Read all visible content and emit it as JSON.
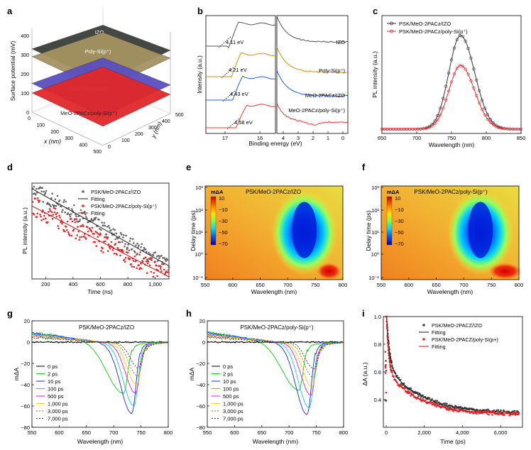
{
  "panels": {
    "a": "a",
    "b": "b",
    "c": "c",
    "d": "d",
    "e": "e",
    "f": "f",
    "g": "g",
    "h": "h",
    "i": "i"
  },
  "colors": {
    "black": "#333333",
    "red": "#e8262b",
    "gray": "#555555",
    "orange": "#d4900e",
    "blue": "#1f5fd6",
    "pinkred": "#e53935"
  },
  "chart_data": [
    {
      "id": "a",
      "type": "surface3d",
      "zlabel": "Surface potential (mV)",
      "xlabel": "x (nm)",
      "ylabel": "y (nm)",
      "zticks": [
        "0",
        "100",
        "200",
        "300",
        "400"
      ],
      "xticks": [
        "0",
        "100",
        "200",
        "300",
        "400",
        "500"
      ],
      "yticks": [
        "0",
        "100",
        "200",
        "300",
        "400",
        "500"
      ],
      "layers": [
        {
          "name": "IZO",
          "level_mV": 330,
          "color": "#3a3f3a"
        },
        {
          "name": "Poly-Si(p⁺)",
          "level_mV": 290,
          "color": "#a49260"
        },
        {
          "name": "MeO-2PACz/IZO",
          "level_mV": 150,
          "color": "#5a4fbf"
        },
        {
          "name": "MeO-2PACz/poly-Si(p⁺)",
          "level_mV": 100,
          "color": "#e0282a"
        }
      ]
    },
    {
      "id": "b",
      "type": "line",
      "xlabel": "Binding energy (eV)",
      "ylabel": "Intensity (a.u.)",
      "xticks_left": [
        "17",
        "16"
      ],
      "xticks_right": [
        "4",
        "3",
        "2",
        "1",
        "0"
      ],
      "series": [
        {
          "name": "IZO",
          "cutoff_eV": "4.11 eV",
          "color": "#555555"
        },
        {
          "name": "Poly-Si(p⁺)",
          "cutoff_eV": "4.21 eV",
          "color": "#d4900e"
        },
        {
          "name": "MeO-2PACz/IZO",
          "cutoff_eV": "4.43 eV",
          "color": "#1f5fd6"
        },
        {
          "name": "MeO-2PACz/poly-Si(p⁺)",
          "cutoff_eV": "4.58 eV",
          "color": "#e53935"
        }
      ]
    },
    {
      "id": "c",
      "type": "line",
      "xlabel": "Wavelength (nm)",
      "ylabel": "PL intensity (a.u.)",
      "xlim": [
        650,
        850
      ],
      "xticks": [
        "650",
        "700",
        "750",
        "800",
        "850"
      ],
      "series": [
        {
          "name": "PSK/MeO-2PACz/IZO",
          "peak_nm": 763,
          "peak": 1.0,
          "width_nm": 30,
          "color": "#333333"
        },
        {
          "name": "PSK/MeO-2PACz/poly-Si(p⁺)",
          "peak_nm": 763,
          "peak": 0.68,
          "width_nm": 30,
          "color": "#e8262b"
        }
      ]
    },
    {
      "id": "d",
      "type": "scatter",
      "xlabel": "Time (ns)",
      "ylabel": "PL intensity (a.u.)",
      "xlim": [
        100,
        1100
      ],
      "xticks": [
        "200",
        "400",
        "600",
        "800",
        "1,000"
      ],
      "legend": [
        "PSK/MeO-2PACz/IZO",
        "Fitting",
        "PSK/MeO-2PACz/poly-Si(p⁺)",
        "Fitting"
      ],
      "series": [
        {
          "name": "PSK/MeO-2PACz/IZO",
          "color": "#666666",
          "fit": [
            [
              100,
              0.97
            ],
            [
              1100,
              0.12
            ]
          ]
        },
        {
          "name": "PSK/MeO-2PACz/poly-Si(p⁺)",
          "color": "#e8262b",
          "fit": [
            [
              100,
              0.78
            ],
            [
              1100,
              0.0
            ]
          ]
        }
      ]
    },
    {
      "id": "e",
      "type": "heatmap",
      "title": "PSK/MeO-2PACz/IZO",
      "xlabel": "Wavelength (nm)",
      "ylabel": "Delay time (ps)",
      "xlim": [
        550,
        800
      ],
      "xticks": [
        "550",
        "600",
        "650",
        "700",
        "750",
        "800"
      ],
      "yticks": [
        "10⁻¹",
        "10⁰",
        "10¹",
        "10²",
        "10³"
      ],
      "colorbar": {
        "label": "mΔA",
        "ticks": [
          "10",
          "−10",
          "−30",
          "−50",
          "−70"
        ]
      }
    },
    {
      "id": "f",
      "type": "heatmap",
      "title": "PSK/MeO-2PACz/poly-Si(p⁺)",
      "xlabel": "Wavelength (nm)",
      "ylabel": "Delay time (ps)",
      "xlim": [
        550,
        800
      ],
      "xticks": [
        "550",
        "600",
        "650",
        "700",
        "750",
        "800"
      ],
      "yticks": [
        "10⁻¹",
        "10⁰",
        "10¹",
        "10²",
        "10³"
      ],
      "colorbar": {
        "label": "mΔA",
        "ticks": [
          "10",
          "−10",
          "−30",
          "−50",
          "−70"
        ]
      }
    },
    {
      "id": "g",
      "type": "line",
      "title": "PSK/MeO-2PACz/IZO",
      "xlabel": "Wavelength (nm)",
      "ylabel": "mΔA",
      "xlim": [
        550,
        800
      ],
      "ylim": [
        -80,
        20
      ],
      "xticks": [
        "550",
        "600",
        "650",
        "700",
        "750",
        "800"
      ],
      "yticks": [
        "20",
        "0",
        "−20",
        "−40",
        "−60",
        "−80"
      ],
      "series": [
        {
          "name": "0 ps",
          "color": "#000000",
          "dash": "",
          "min": -1,
          "center": 740
        },
        {
          "name": "2 ps",
          "color": "#14c814",
          "dash": "",
          "min": -48,
          "center": 718
        },
        {
          "name": "10 ps",
          "color": "#1b2bd8",
          "dash": "",
          "min": -67,
          "center": 733
        },
        {
          "name": "100 ps",
          "color": "#19c8e6",
          "dash": "",
          "min": -60,
          "center": 737
        },
        {
          "name": "500 ps",
          "color": "#e619e0",
          "dash": "",
          "min": -48,
          "center": 740
        },
        {
          "name": "1,000 ps",
          "color": "#e6d419",
          "dash": "",
          "min": -40,
          "center": 742
        },
        {
          "name": "3,000 ps",
          "color": "#7a7a1a",
          "dash": "2,2",
          "min": -32,
          "center": 744
        },
        {
          "name": "7,000 ps",
          "color": "#303030",
          "dash": "2,2",
          "min": -24,
          "center": 745
        }
      ]
    },
    {
      "id": "h",
      "type": "line",
      "title": "PSK/MeO-2PACz/poly-Si(p⁺)",
      "xlabel": "Wavelength (nm)",
      "ylabel": "mΔA",
      "xlim": [
        550,
        800
      ],
      "ylim": [
        -80,
        20
      ],
      "xticks": [
        "550",
        "600",
        "650",
        "700",
        "750",
        "800"
      ],
      "yticks": [
        "20",
        "0",
        "−20",
        "−40",
        "−60",
        "−80"
      ],
      "series": [
        {
          "name": "0 ps",
          "color": "#000000",
          "dash": "",
          "min": -1,
          "center": 740
        },
        {
          "name": "2 ps",
          "color": "#14c814",
          "dash": "",
          "min": -45,
          "center": 718
        },
        {
          "name": "10 ps",
          "color": "#1b2bd8",
          "dash": "",
          "min": -68,
          "center": 733
        },
        {
          "name": "100 ps",
          "color": "#19c8e6",
          "dash": "",
          "min": -62,
          "center": 737
        },
        {
          "name": "500 ps",
          "color": "#e619e0",
          "dash": "",
          "min": -50,
          "center": 740
        },
        {
          "name": "1,000 ps",
          "color": "#e6d419",
          "dash": "",
          "min": -42,
          "center": 742
        },
        {
          "name": "3,000 ps",
          "color": "#7a7a1a",
          "dash": "2,2",
          "min": -33,
          "center": 744
        },
        {
          "name": "7,000 ps",
          "color": "#303030",
          "dash": "2,2",
          "min": -25,
          "center": 745
        }
      ]
    },
    {
      "id": "i",
      "type": "scatter",
      "xlabel": "Time (ps)",
      "ylabel": "ΔA (a.u.)",
      "xlim": [
        0,
        7000
      ],
      "ylim": [
        0.2,
        1.0
      ],
      "xticks": [
        "0",
        "2,000",
        "4,000",
        "6,000"
      ],
      "yticks": [
        "1.0",
        "0.8",
        "0.6",
        "0.4"
      ],
      "legend": [
        "PSK/MeO-2PACZ/IZO",
        "Fitting",
        "PSK/MeO-2PACZ/poly-Si(p+)",
        "Fitting"
      ],
      "series": [
        {
          "name": "PSK/MeO-2PACZ/IZO",
          "color": "#444444",
          "fit": {
            "a1": 0.42,
            "t1": 150,
            "a2": 0.35,
            "t2": 1800,
            "c": 0.3
          }
        },
        {
          "name": "PSK/MeO-2PACZ/poly-Si(p+)",
          "color": "#e8262b",
          "fit": {
            "a1": 0.45,
            "t1": 120,
            "a2": 0.32,
            "t2": 1700,
            "c": 0.3
          }
        }
      ]
    }
  ]
}
